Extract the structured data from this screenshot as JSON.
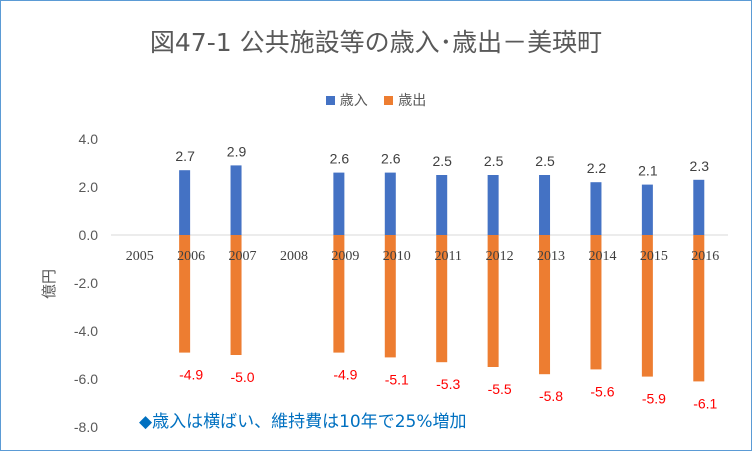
{
  "chart_data": {
    "type": "bar",
    "title": "図47-1 公共施設等の歳入･歳出－美瑛町",
    "ylabel": "億円",
    "xlabel": "",
    "ylim": [
      -8.0,
      4.0
    ],
    "yticks": [
      "4.0",
      "2.0",
      "0.0",
      "-2.0",
      "-4.0",
      "-6.0",
      "-8.0"
    ],
    "categories": [
      "2005",
      "2006",
      "2007",
      "2008",
      "2009",
      "2010",
      "2011",
      "2012",
      "2013",
      "2014",
      "2015",
      "2016"
    ],
    "series": [
      {
        "name": "歳入",
        "color": "#4472c4",
        "values": [
          null,
          2.7,
          2.9,
          null,
          2.6,
          2.6,
          2.5,
          2.5,
          2.5,
          2.2,
          2.1,
          2.3
        ],
        "labels": [
          "",
          "2.7",
          "2.9",
          "",
          "2.6",
          "2.6",
          "2.5",
          "2.5",
          "2.5",
          "2.2",
          "2.1",
          "2.3"
        ]
      },
      {
        "name": "歳出",
        "color": "#ed7d31",
        "values": [
          null,
          -4.9,
          -5.0,
          null,
          -4.9,
          -5.1,
          -5.3,
          -5.5,
          -5.8,
          -5.6,
          -5.9,
          -6.1
        ],
        "labels": [
          "",
          "-4.9",
          "-5.0",
          "",
          "-4.9",
          "-5.1",
          "-5.3",
          "-5.5",
          "-5.8",
          "-5.6",
          "-5.9",
          "-6.1"
        ]
      }
    ],
    "legend": "top",
    "grid": false,
    "annotation": "◆歳入は横ばい、維持費は10年で25%増加"
  }
}
